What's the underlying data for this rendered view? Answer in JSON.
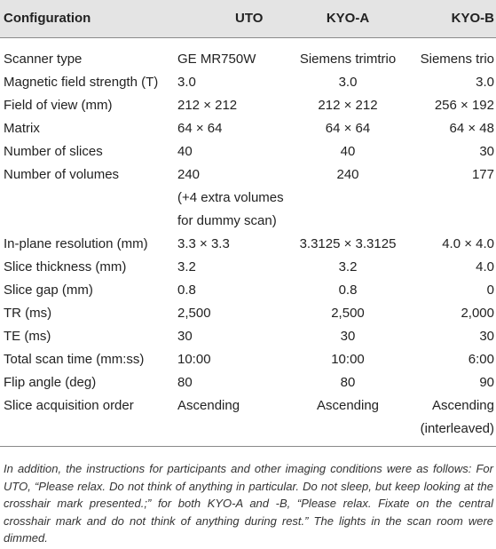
{
  "headers": [
    "Configuration",
    "UTO",
    "KYO-A",
    "KYO-B"
  ],
  "rows": [
    {
      "label": "Scanner type",
      "uto": "GE MR750W",
      "kyo_a": "Siemens trimtrio",
      "kyo_b": "Siemens trio"
    },
    {
      "label": "Magnetic field strength (T)",
      "uto": "3.0",
      "kyo_a": "3.0",
      "kyo_b": "3.0"
    },
    {
      "label": "Field of view (mm)",
      "uto": "212 × 212",
      "kyo_a": "212 × 212",
      "kyo_b": "256 × 192"
    },
    {
      "label": "Matrix",
      "uto": "64 × 64",
      "kyo_a": "64 × 64",
      "kyo_b": "64 × 48"
    },
    {
      "label": "Number of slices",
      "uto": "40",
      "kyo_a": "40",
      "kyo_b": "30"
    },
    {
      "label": "Number of volumes",
      "uto": "240",
      "uto_extra_1": "(+4 extra volumes",
      "uto_extra_2": "for dummy scan)",
      "kyo_a": "240",
      "kyo_b": "177"
    },
    {
      "label": "In-plane resolution (mm)",
      "uto": "3.3 × 3.3",
      "kyo_a": "3.3125 × 3.3125",
      "kyo_b": "4.0 × 4.0"
    },
    {
      "label": "Slice thickness (mm)",
      "uto": "3.2",
      "kyo_a": "3.2",
      "kyo_b": "4.0"
    },
    {
      "label": "Slice gap (mm)",
      "uto": "0.8",
      "kyo_a": "0.8",
      "kyo_b": "0"
    },
    {
      "label": "TR (ms)",
      "uto": "2,500",
      "kyo_a": "2,500",
      "kyo_b": "2,000"
    },
    {
      "label": "TE (ms)",
      "uto": "30",
      "kyo_a": "30",
      "kyo_b": "30"
    },
    {
      "label": "Total scan time (mm:ss)",
      "uto": "10:00",
      "kyo_a": "10:00",
      "kyo_b": "6:00"
    },
    {
      "label": "Flip angle (deg)",
      "uto": "80",
      "kyo_a": "80",
      "kyo_b": "90"
    },
    {
      "label": "Slice acquisition order",
      "uto": "Ascending",
      "kyo_a": "Ascending",
      "kyo_b": "Ascending",
      "kyo_b_extra": "(interleaved)"
    }
  ],
  "footnote": "In addition, the instructions for participants and other imaging conditions were as follows: For UTO, “Please relax. Do not think of anything in particular. Do not sleep, but keep looking at the crosshair mark presented.;” for both KYO-A and -B, “Please relax. Fixate on the central crosshair mark and do not think of anything during rest.” The lights in the scan room were dimmed."
}
